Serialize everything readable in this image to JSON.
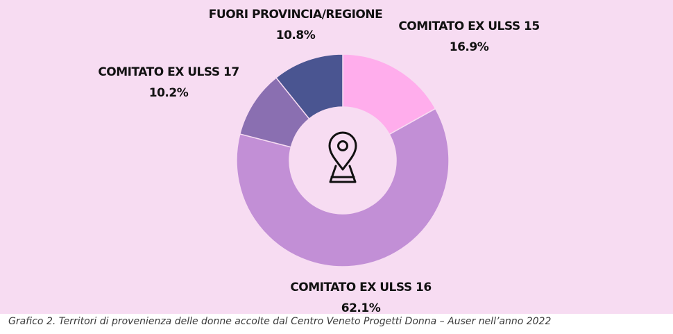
{
  "chart_data": {
    "type": "pie",
    "categories": [
      "COMITATO EX ULSS 15",
      "COMITATO EX ULSS 16",
      "COMITATO EX ULSS 17",
      "FUORI PROVINCIA/REGIONE"
    ],
    "values": [
      16.9,
      62.1,
      10.2,
      10.8
    ],
    "value_labels": [
      "16.9%",
      "62.1%",
      "10.2%",
      "10.8%"
    ],
    "colors": [
      "#ffadec",
      "#c28fd6",
      "#8a6fb1",
      "#4a5591"
    ],
    "style": "donut",
    "center_icon": "map-pin-icon"
  },
  "caption": "Grafico 2. Territori di provenienza delle donne accolte dal Centro Veneto Progetti Donna – Auser nell’anno 2022",
  "colors": {
    "background": "#f7dcf2",
    "center": "#f7dcf2"
  }
}
